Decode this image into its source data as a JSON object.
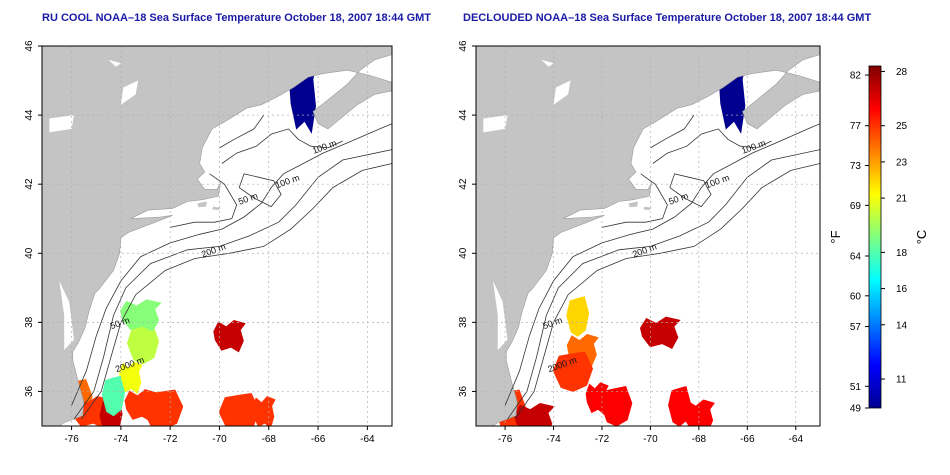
{
  "panels": [
    {
      "title": "RU COOL NOAA–18 Sea Surface Temperature October 18, 2007 18:44 GMT"
    },
    {
      "title": "DECLOUDED NOAA–18 Sea Surface Temperature October 18, 2007 18:44 GMT"
    }
  ],
  "chart_data": [
    {
      "type": "heatmap",
      "title": "RU COOL NOAA–18 Sea Surface Temperature October 18, 2007 18:44 GMT",
      "x_ticks": [
        -76,
        -74,
        -72,
        -70,
        -68,
        -66,
        -64
      ],
      "y_ticks": [
        36,
        38,
        40,
        42,
        44,
        46
      ],
      "xlim": [
        -77.2,
        -63.0
      ],
      "ylim": [
        35.0,
        46.0
      ],
      "grid": true,
      "contour_labels": [
        {
          "text": "100 m",
          "lon": -65.7,
          "lat": 43.0
        },
        {
          "text": "100 m",
          "lon": -67.2,
          "lat": 42.0
        },
        {
          "text": "50 m",
          "lon": -68.8,
          "lat": 41.5
        },
        {
          "text": "200 m",
          "lon": -70.2,
          "lat": 40.0
        },
        {
          "text": "50 m",
          "lon": -74.0,
          "lat": 37.9
        },
        {
          "text": "2000 m",
          "lon": -73.6,
          "lat": 36.7
        }
      ],
      "sst_patches": [
        {
          "lon": -66.6,
          "lat": 44.6,
          "temp_c": 9
        },
        {
          "lon": -75.8,
          "lat": 35.8,
          "temp_c": 24
        },
        {
          "lon": -75.2,
          "lat": 35.4,
          "temp_c": 25
        },
        {
          "lon": -74.4,
          "lat": 35.3,
          "temp_c": 27
        },
        {
          "lon": -73.2,
          "lat": 35.6,
          "temp_c": 25
        },
        {
          "lon": -72.3,
          "lat": 35.5,
          "temp_c": 25
        },
        {
          "lon": -73.6,
          "lat": 36.4,
          "temp_c": 21
        },
        {
          "lon": -73.1,
          "lat": 37.4,
          "temp_c": 20
        },
        {
          "lon": -73.2,
          "lat": 38.2,
          "temp_c": 19
        },
        {
          "lon": -74.3,
          "lat": 35.9,
          "temp_c": 18
        },
        {
          "lon": -69.6,
          "lat": 37.6,
          "temp_c": 27
        },
        {
          "lon": -69.2,
          "lat": 35.4,
          "temp_c": 25
        },
        {
          "lon": -68.2,
          "lat": 35.4,
          "temp_c": 25
        }
      ]
    },
    {
      "type": "heatmap",
      "title": "DECLOUDED NOAA–18 Sea Surface Temperature October 18, 2007 18:44 GMT",
      "x_ticks": [
        -76,
        -74,
        -72,
        -70,
        -68,
        -66,
        -64
      ],
      "y_ticks": [
        36,
        38,
        40,
        42,
        44,
        46
      ],
      "xlim": [
        -77.2,
        -63.0
      ],
      "ylim": [
        35.0,
        46.0
      ],
      "grid": true,
      "contour_labels": [
        {
          "text": "100 m",
          "lon": -65.7,
          "lat": 43.0
        },
        {
          "text": "100 m",
          "lon": -67.2,
          "lat": 42.0
        },
        {
          "text": "50 m",
          "lon": -68.8,
          "lat": 41.5
        },
        {
          "text": "200 m",
          "lon": -70.2,
          "lat": 40.0
        },
        {
          "text": "50 m",
          "lon": -74.0,
          "lat": 37.9
        },
        {
          "text": "2000 m",
          "lon": -73.6,
          "lat": 36.7
        }
      ],
      "sst_patches": [
        {
          "lon": -66.6,
          "lat": 44.6,
          "temp_c": 9
        },
        {
          "lon": -75.8,
          "lat": 35.5,
          "temp_c": 25
        },
        {
          "lon": -74.8,
          "lat": 35.2,
          "temp_c": 27
        },
        {
          "lon": -73.0,
          "lat": 38.2,
          "temp_c": 22
        },
        {
          "lon": -72.8,
          "lat": 37.2,
          "temp_c": 24
        },
        {
          "lon": -73.2,
          "lat": 36.6,
          "temp_c": 25
        },
        {
          "lon": -72.2,
          "lat": 35.8,
          "temp_c": 26
        },
        {
          "lon": -71.4,
          "lat": 35.6,
          "temp_c": 26
        },
        {
          "lon": -69.6,
          "lat": 37.7,
          "temp_c": 27
        },
        {
          "lon": -68.8,
          "lat": 35.6,
          "temp_c": 26
        },
        {
          "lon": -68.0,
          "lat": 35.3,
          "temp_c": 26
        }
      ]
    }
  ],
  "colorbar": {
    "fahrenheit_label": "°F",
    "celsius_label": "°C",
    "min_c": 9.4,
    "max_c": 28.3,
    "fahrenheit_ticks": [
      {
        "label": "82",
        "c": 27.8
      },
      {
        "label": "77",
        "c": 25.0
      },
      {
        "label": "73",
        "c": 22.8
      },
      {
        "label": "69",
        "c": 20.6
      },
      {
        "label": "64",
        "c": 17.8
      },
      {
        "label": "60",
        "c": 15.6
      },
      {
        "label": "57",
        "c": 13.9
      },
      {
        "label": "51",
        "c": 10.6
      },
      {
        "label": "49",
        "c": 9.4
      }
    ],
    "celsius_ticks": [
      {
        "label": "28",
        "c": 28
      },
      {
        "label": "25",
        "c": 25
      },
      {
        "label": "23",
        "c": 23
      },
      {
        "label": "21",
        "c": 21
      },
      {
        "label": "18",
        "c": 18
      },
      {
        "label": "16",
        "c": 16
      },
      {
        "label": "14",
        "c": 14
      },
      {
        "label": "11",
        "c": 11
      }
    ],
    "colors": [
      "#00008f",
      "#0000ff",
      "#0080ff",
      "#00ffff",
      "#80ff80",
      "#ffff00",
      "#ff8000",
      "#ff0000",
      "#800000"
    ]
  },
  "colors": {
    "land": "#c4c4c4",
    "ocean": "#ffffff",
    "contour": "#333333",
    "grid": "#b0b0b0"
  }
}
